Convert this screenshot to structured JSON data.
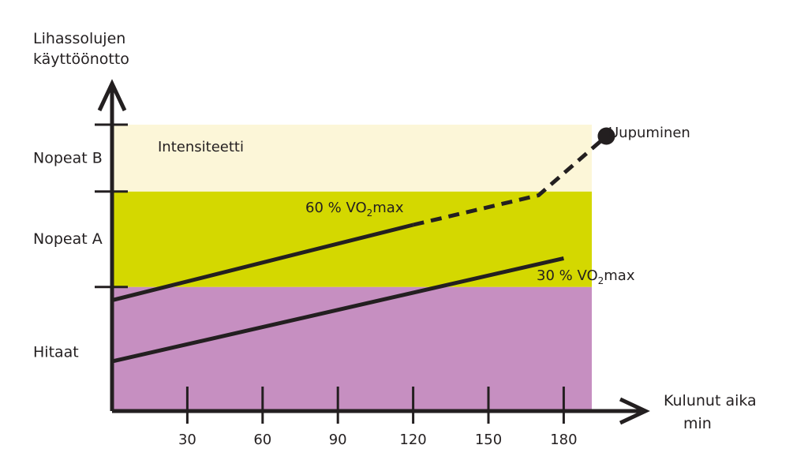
{
  "chart_data": {
    "type": "line",
    "ylabel_lines": [
      "Lihassolujen",
      "käyttöönotto"
    ],
    "xlabel_lines": [
      "Kulunut aika",
      "min"
    ],
    "x_ticks": [
      30,
      60,
      90,
      120,
      150,
      180
    ],
    "xlim": [
      0,
      200
    ],
    "ylim": [
      0,
      3
    ],
    "bands": [
      {
        "label": "Hitaat",
        "from": 0,
        "to": 1.3,
        "color": "#c68fc1"
      },
      {
        "label": "Nopeat A",
        "from": 1.3,
        "to": 2.3,
        "color": "#d4d800"
      },
      {
        "label": "Nopeat B",
        "from": 2.3,
        "to": 3.0,
        "color": "#fcf6d8"
      }
    ],
    "band_note": "Intensiteetti",
    "series": [
      {
        "name": "60 % VO2max",
        "label_prefix": "60 % VO",
        "label_sub": "2",
        "label_suffix": "max",
        "solid": [
          [
            0,
            1.16
          ],
          [
            120,
            1.95
          ]
        ],
        "dashed": [
          [
            120,
            1.95
          ],
          [
            170,
            2.26
          ],
          [
            197,
            2.88
          ]
        ],
        "end_marker": [
          197,
          2.88
        ],
        "end_label": "Uupuminen",
        "color": "#231f20"
      },
      {
        "name": "30 % VO2max",
        "label_prefix": "30 % VO",
        "label_sub": "2",
        "label_suffix": "max",
        "solid": [
          [
            0,
            0.52
          ],
          [
            180,
            1.6
          ]
        ],
        "color": "#231f20"
      }
    ]
  }
}
